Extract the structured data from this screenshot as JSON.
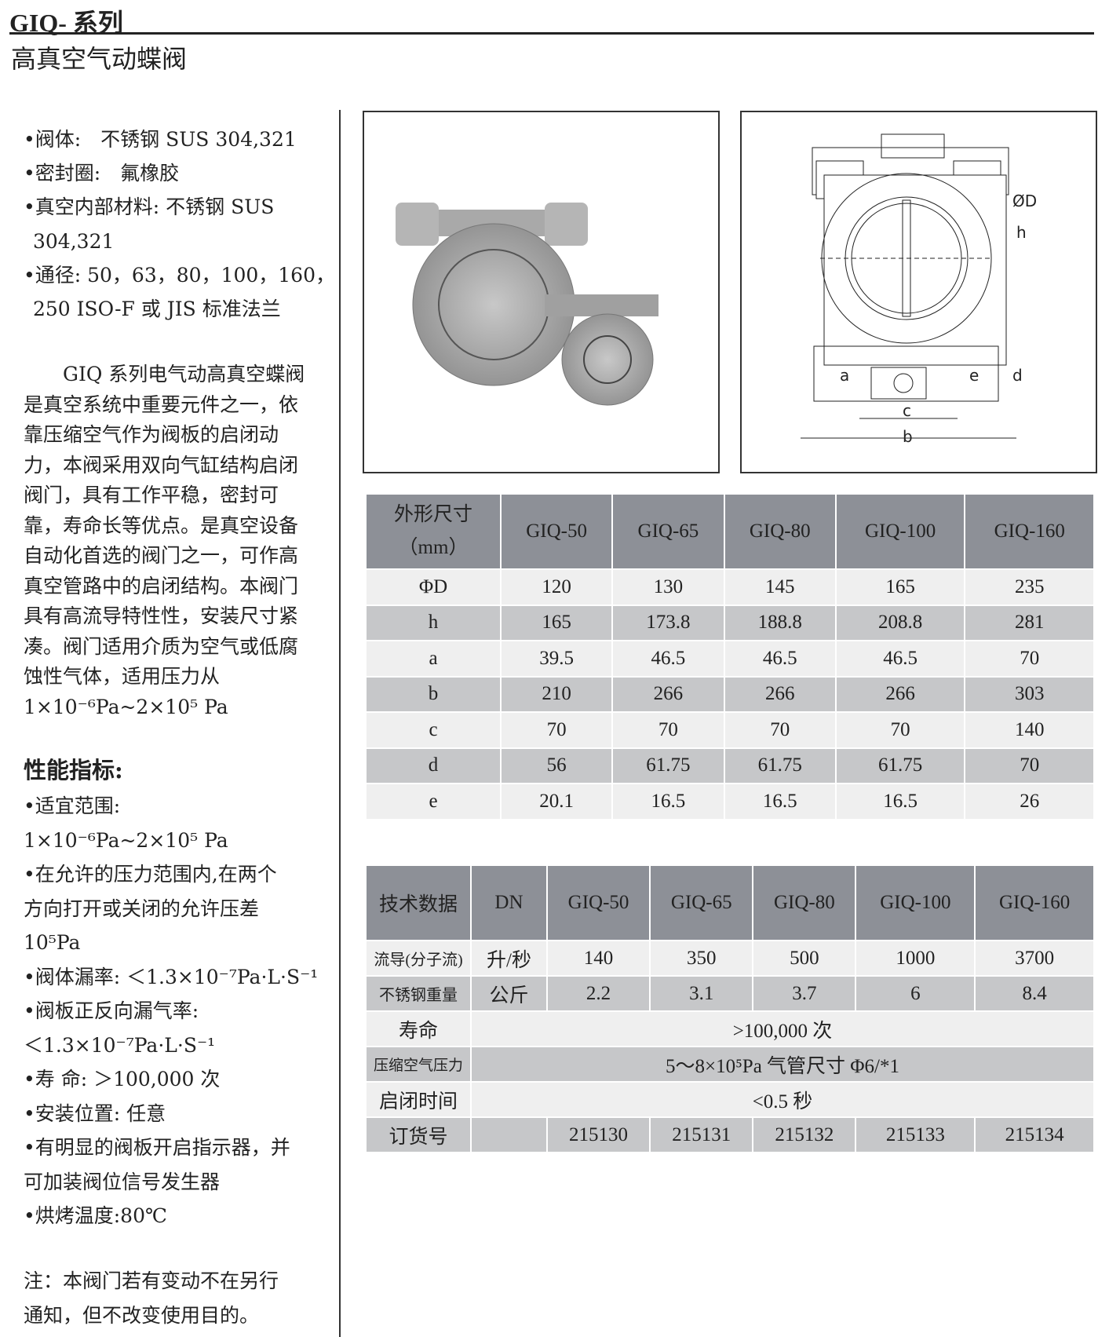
{
  "header": {
    "series": "GIQ- 系列",
    "title": "高真空气动蝶阀"
  },
  "specs": [
    "•阀体:　不锈钢  SUS 304,321",
    "•密封圈:　氟橡胶",
    "•真空内部材料: 不锈钢  SUS",
    "304,321",
    "•通径: 50，63，80，100，160，",
    "250 ISO-F  或  JIS  标准法兰"
  ],
  "description": "　　GIQ 系列电气动高真空蝶阀是真空系统中重要元件之一，依靠压缩空气作为阀板的启闭动力，本阀采用双向气缸结构启闭阀门，具有工作平稳，密封可靠，寿命长等优点。是真空设备自动化首选的阀门之一，可作高真空管路中的启闭结构。本阀门具有高流导特性性，安装尺寸紧凑。阀门适用介质为空气或低腐蚀性气体，适用压力从1×10⁻⁶Pa~2×10⁵ Pa",
  "performance": {
    "heading": "性能指标:",
    "items": [
      "•适宜范围:",
      "  1×10⁻⁶Pa~2×10⁵ Pa",
      "•在允许的压力范围内,在两个",
      "  方向打开或关闭的允许压差",
      "  10⁵Pa",
      "•阀体漏率: ＜1.3×10⁻⁷Pa·L·S⁻¹",
      "•阀板正反向漏气率:",
      "  ＜1.3×10⁻⁷Pa·L·S⁻¹",
      "•寿  命: ＞100,000 次",
      "•安装位置: 任意",
      "•有明显的阀板开启指示器，并",
      "  可加装阀位信号发生器",
      "•烘烤温度:80℃"
    ]
  },
  "note": [
    "注：本阀门若有变动不在另行",
    "通知，但不改变使用目的。"
  ],
  "drawing_labels": {
    "D": "ØD",
    "h": "h",
    "a": "a",
    "e": "e",
    "d": "d",
    "c": "c",
    "b": "b"
  },
  "dim_table": {
    "header": [
      "外形尺寸",
      "（mm）"
    ],
    "models": [
      "GIQ-50",
      "GIQ-65",
      "GIQ-80",
      "GIQ-100",
      "GIQ-160"
    ],
    "rows": [
      [
        "ΦD",
        "120",
        "130",
        "145",
        "165",
        "235"
      ],
      [
        "h",
        "165",
        "173.8",
        "188.8",
        "208.8",
        "281"
      ],
      [
        "a",
        "39.5",
        "46.5",
        "46.5",
        "46.5",
        "70"
      ],
      [
        "b",
        "210",
        "266",
        "266",
        "266",
        "303"
      ],
      [
        "c",
        "70",
        "70",
        "70",
        "70",
        "140"
      ],
      [
        "d",
        "56",
        "61.75",
        "61.75",
        "61.75",
        "70"
      ],
      [
        "e",
        "20.1",
        "16.5",
        "16.5",
        "16.5",
        "26"
      ]
    ]
  },
  "tech_table": {
    "header": [
      "技术数据",
      "DN",
      "GIQ-50",
      "GIQ-65",
      "GIQ-80",
      "GIQ-100",
      "GIQ-160"
    ],
    "rows": [
      [
        "流导(分子流)",
        "升/秒",
        "140",
        "350",
        "500",
        "1000",
        "3700"
      ],
      [
        "不锈钢重量",
        "公斤",
        "2.2",
        "3.1",
        "3.7",
        "6",
        "8.4"
      ]
    ],
    "life": [
      "寿命",
      ">100,000 次"
    ],
    "pressure": [
      "压缩空气压力",
      "5～8×10⁵Pa 气管尺寸 Φ6/*1"
    ],
    "time": [
      "启闭时间",
      "<0.5 秒"
    ],
    "order": [
      "订货号",
      "215130",
      "215131",
      "215132",
      "215133",
      "215134"
    ]
  }
}
